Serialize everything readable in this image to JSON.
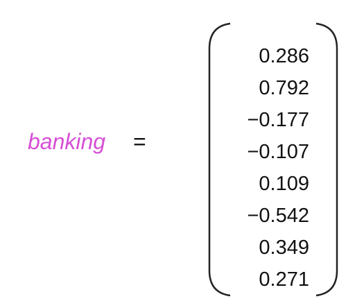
{
  "equation": {
    "variable": "banking",
    "equals_sign": "=",
    "variable_color": "#d64fd6",
    "vector": [
      "0.286",
      "0.792",
      "−0.177",
      "−0.107",
      "0.109",
      "−0.542",
      "0.349",
      "0.271"
    ]
  }
}
